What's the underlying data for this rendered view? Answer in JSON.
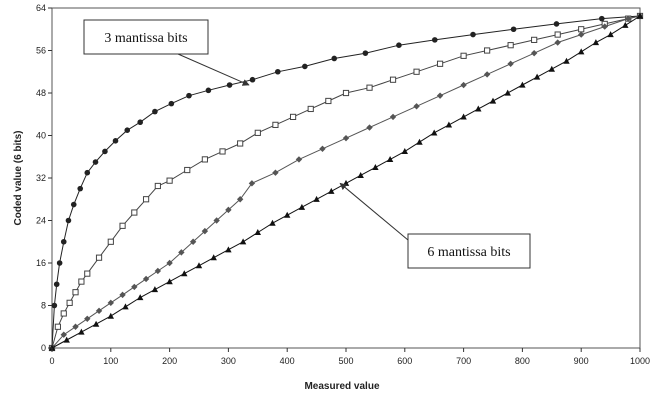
{
  "chart_data": {
    "type": "line",
    "title": "",
    "xlabel": "Measured value",
    "ylabel": "Coded value (6 bits)",
    "xlim": [
      0,
      1000
    ],
    "ylim": [
      0,
      64
    ],
    "x_ticks": [
      0,
      100,
      200,
      300,
      400,
      500,
      600,
      700,
      800,
      900,
      1000
    ],
    "y_ticks": [
      0,
      8,
      16,
      24,
      32,
      40,
      48,
      56,
      64
    ],
    "grid": false,
    "legend": "none",
    "series": [
      {
        "marker": "filled-circle",
        "color": "#222222",
        "x": [
          0,
          4,
          8,
          13,
          20,
          28,
          37,
          48,
          60,
          74,
          90,
          108,
          128,
          150,
          175,
          203,
          233,
          266,
          302,
          341,
          384,
          430,
          480,
          533,
          590,
          651,
          716,
          785,
          858,
          935,
          1000
        ],
        "y": [
          0,
          8,
          12,
          16,
          20,
          24,
          27,
          30,
          33,
          35,
          37,
          39,
          41,
          42.5,
          44.5,
          46,
          47.5,
          48.5,
          49.5,
          50.5,
          52,
          53,
          54.5,
          55.5,
          57,
          58,
          59,
          60,
          61,
          62,
          62.5
        ]
      },
      {
        "marker": "open-square",
        "color": "#444444",
        "x": [
          0,
          10,
          20,
          30,
          40,
          50,
          60,
          80,
          100,
          120,
          140,
          160,
          180,
          200,
          230,
          260,
          290,
          320,
          350,
          380,
          410,
          440,
          470,
          500,
          540,
          580,
          620,
          660,
          700,
          740,
          780,
          820,
          860,
          900,
          940,
          980,
          1000
        ],
        "y": [
          0,
          4,
          6.5,
          8.5,
          10.5,
          12.5,
          14,
          17,
          20,
          23,
          25.5,
          28,
          30.5,
          31.5,
          33.5,
          35.5,
          37,
          38.5,
          40.5,
          42,
          43.5,
          45,
          46.5,
          48,
          49,
          50.5,
          52,
          53.5,
          55,
          56,
          57,
          58,
          59,
          60,
          61,
          62,
          62.5
        ]
      },
      {
        "marker": "filled-diamond",
        "color": "#555555",
        "x": [
          0,
          20,
          40,
          60,
          80,
          100,
          120,
          140,
          160,
          180,
          200,
          220,
          240,
          260,
          280,
          300,
          320,
          340,
          380,
          420,
          460,
          500,
          540,
          580,
          620,
          660,
          700,
          740,
          780,
          820,
          860,
          900,
          940,
          980,
          1000
        ],
        "y": [
          0,
          2.5,
          4,
          5.5,
          7,
          8.5,
          10,
          11.5,
          13,
          14.5,
          16,
          18,
          20,
          22,
          24,
          26,
          28,
          31,
          33,
          35.5,
          37.5,
          39.5,
          41.5,
          43.5,
          45.5,
          47.5,
          49.5,
          51.5,
          53.5,
          55.5,
          57.5,
          59,
          60.5,
          62,
          62.5
        ]
      },
      {
        "marker": "filled-triangle",
        "color": "#111111",
        "x": [
          0,
          25,
          50,
          75,
          100,
          125,
          150,
          175,
          200,
          225,
          250,
          275,
          300,
          325,
          350,
          375,
          400,
          425,
          450,
          475,
          500,
          525,
          550,
          575,
          600,
          625,
          650,
          675,
          700,
          725,
          750,
          775,
          800,
          825,
          850,
          875,
          900,
          925,
          950,
          975,
          1000
        ],
        "y": [
          0,
          1.5,
          3,
          4.5,
          6,
          7.75,
          9.5,
          11,
          12.5,
          14,
          15.5,
          17,
          18.5,
          20,
          21.75,
          23.5,
          25,
          26.5,
          28,
          29.5,
          31,
          32.5,
          34,
          35.5,
          37,
          38.75,
          40.5,
          42,
          43.5,
          45,
          46.5,
          48,
          49.5,
          51,
          52.5,
          54,
          55.75,
          57.5,
          59,
          60.75,
          62.5
        ]
      }
    ],
    "annotations": [
      {
        "text": "3 mantissa bits",
        "target_x": 335,
        "target_y": 49.5
      },
      {
        "text": "6 mantissa bits",
        "target_x": 490,
        "target_y": 31
      }
    ]
  }
}
